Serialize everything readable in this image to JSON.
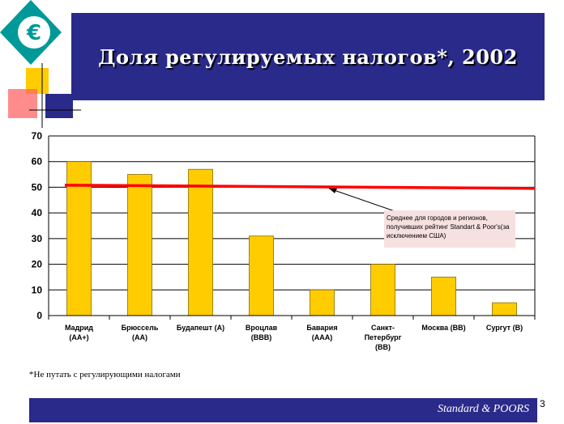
{
  "slide": {
    "title": "Доля регулируемых налогов*, 2002",
    "footnote": "*Не путать с регулирующими налогами",
    "brand": "Standard & POORS",
    "page_number": "3",
    "logo_symbol": "€"
  },
  "colors": {
    "banner": "#2a2a8a",
    "bar": "#ffcc00",
    "bar_border": "#8a6d00",
    "average_line": "#ff0000",
    "logo_teal": "#009999"
  },
  "chart_data": {
    "type": "bar",
    "categories": [
      "Мадрид\n(AA+)",
      "Брюссель\n(AA)",
      "Будапешт (A)",
      "Вроцлав\n(BBB)",
      "Бавария\n(AAA)",
      "Санкт-\nПетербург\n(BB)",
      "Москва (BB)",
      "Сургут (B)"
    ],
    "values": [
      60,
      55,
      57,
      31,
      10,
      20,
      15,
      5
    ],
    "ylim": [
      0,
      70
    ],
    "yticks": [
      0,
      10,
      20,
      30,
      40,
      50,
      60,
      70
    ],
    "grid": true,
    "average_line": {
      "value": 50.5
    },
    "annotation": "Среднее для городов и регионов, получивших рейтинг Standart & Poor's(за исключением США)"
  }
}
